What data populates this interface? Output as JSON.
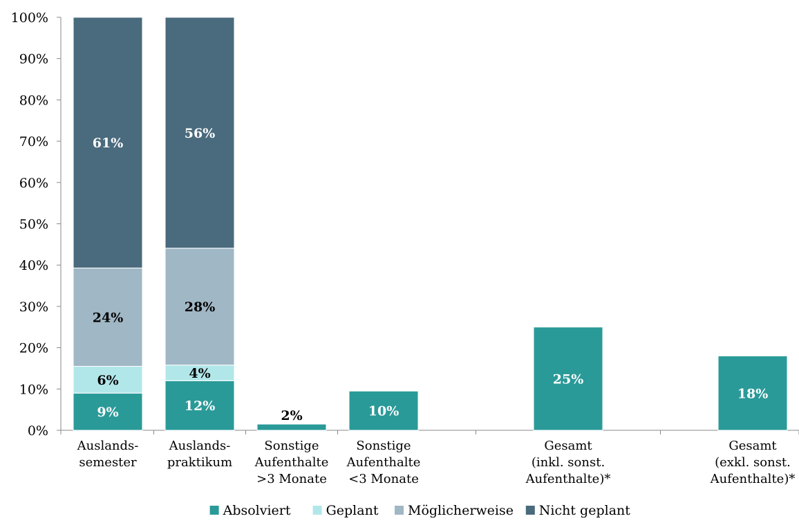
{
  "chart_data": {
    "type": "bar",
    "stacked": true,
    "title": "",
    "xlabel": "",
    "ylabel": "",
    "ylim": [
      0,
      100
    ],
    "yticks": [
      "0%",
      "10%",
      "20%",
      "30%",
      "40%",
      "50%",
      "60%",
      "70%",
      "80%",
      "90%",
      "100%"
    ],
    "grid": false,
    "legend_position": "bottom",
    "categories": [
      [
        "Auslands-",
        "semester"
      ],
      [
        "Auslands-",
        "praktikum"
      ],
      [
        "Sonstige",
        "Aufenthalte",
        ">3 Monate"
      ],
      [
        "Sonstige",
        "Aufenthalte",
        "<3 Monate"
      ],
      [
        "Gesamt",
        "(inkl. sonst.",
        "Aufenthalte)*"
      ],
      [
        "Gesamt",
        "(exkl. sonst.",
        "Aufenthalte)*"
      ]
    ],
    "series": [
      {
        "name": "Absolviert",
        "color": "#2a9a98",
        "label_color": "#ffffff",
        "values": [
          9,
          12,
          1.5,
          9.5,
          25,
          18
        ],
        "labels": [
          "9%",
          "12%",
          "2%",
          "10%",
          "25%",
          "18%"
        ]
      },
      {
        "name": "Geplant",
        "color": "#b2e7ea",
        "label_color": "#000000",
        "values": [
          6.5,
          3.8,
          0,
          0,
          0,
          0
        ],
        "labels": [
          "6%",
          "4%",
          "",
          "",
          "",
          ""
        ]
      },
      {
        "name": "Möglicherweise",
        "color": "#a0b7c5",
        "label_color": "#000000",
        "values": [
          23.8,
          28.3,
          0,
          0,
          0,
          0
        ],
        "labels": [
          "24%",
          "28%",
          "",
          "",
          "",
          ""
        ]
      },
      {
        "name": "Nicht geplant",
        "color": "#4a6a7d",
        "label_color": "#ffffff",
        "values": [
          60.7,
          55.9,
          0,
          0,
          0,
          0
        ],
        "labels": [
          "61%",
          "56%",
          "",
          "",
          "",
          ""
        ]
      }
    ]
  }
}
